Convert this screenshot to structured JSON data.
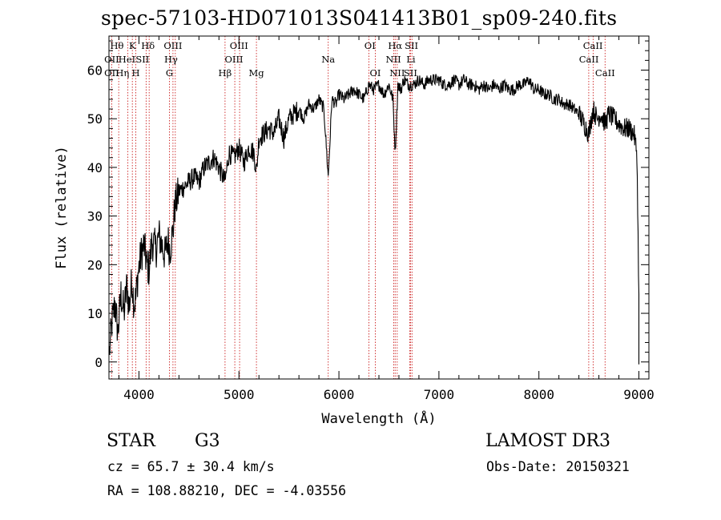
{
  "chart_data": {
    "type": "line",
    "title": "spec-57103-HD071013S041413B01_sp09-240.fits",
    "xlabel": "Wavelength (Å)",
    "ylabel": "Flux (relative)",
    "xlim": [
      3700,
      9100
    ],
    "ylim": [
      -3.5,
      67
    ],
    "xticks": [
      4000,
      5000,
      6000,
      7000,
      8000,
      9000
    ],
    "yticks": [
      0,
      10,
      20,
      30,
      40,
      50,
      60
    ],
    "xtick_labels": [
      "4000",
      "5000",
      "6000",
      "7000",
      "8000",
      "9000"
    ],
    "ytick_labels": [
      "0",
      "10",
      "20",
      "30",
      "40",
      "50",
      "60"
    ],
    "series": [
      {
        "name": "flux",
        "x": [
          3705,
          3730,
          3760,
          3790,
          3820,
          3850,
          3880,
          3900,
          3930,
          3950,
          3968,
          3990,
          4020,
          4050,
          4080,
          4102,
          4130,
          4170,
          4200,
          4230,
          4260,
          4290,
          4310,
          4340,
          4360,
          4400,
          4450,
          4500,
          4550,
          4600,
          4650,
          4700,
          4750,
          4800,
          4861,
          4900,
          4950,
          5000,
          5050,
          5100,
          5150,
          5175,
          5200,
          5250,
          5300,
          5350,
          5400,
          5450,
          5500,
          5550,
          5600,
          5650,
          5700,
          5750,
          5800,
          5850,
          5893,
          5930,
          5970,
          6000,
          6050,
          6100,
          6150,
          6200,
          6250,
          6300,
          6350,
          6400,
          6450,
          6500,
          6540,
          6563,
          6590,
          6620,
          6650,
          6700,
          6750,
          6800,
          6850,
          6900,
          6950,
          7000,
          7050,
          7100,
          7150,
          7200,
          7250,
          7300,
          7350,
          7400,
          7450,
          7500,
          7550,
          7600,
          7650,
          7700,
          7750,
          7800,
          7850,
          7900,
          7950,
          8000,
          8050,
          8100,
          8150,
          8200,
          8250,
          8300,
          8350,
          8400,
          8450,
          8498,
          8542,
          8580,
          8620,
          8662,
          8700,
          8750,
          8800,
          8850,
          8900,
          8950,
          8980,
          9000
        ],
        "y": [
          2,
          8,
          12,
          6,
          14,
          10,
          16,
          11,
          17,
          12,
          13,
          18,
          22,
          24,
          20,
          19,
          25,
          23,
          26,
          24,
          22,
          25,
          23,
          27,
          32,
          35,
          36,
          37,
          38,
          37,
          40,
          41,
          42,
          40,
          37,
          43,
          42,
          44,
          41,
          44,
          43,
          39,
          46,
          47,
          48,
          47,
          50,
          46,
          50,
          51,
          52,
          50,
          53,
          52,
          54,
          52,
          38,
          54,
          53,
          55,
          54,
          55,
          56,
          55,
          54,
          57,
          56,
          57,
          55,
          57,
          54,
          43,
          57,
          56,
          58,
          57,
          57,
          58,
          57,
          58,
          58,
          58,
          57,
          57,
          58,
          57,
          58,
          57,
          57,
          56,
          57,
          56,
          57,
          56,
          57,
          56,
          56,
          57,
          57,
          58,
          56,
          56,
          55,
          55,
          54,
          54,
          53,
          53,
          52,
          51,
          49,
          47,
          52,
          50,
          51,
          49,
          51,
          50,
          49,
          48,
          48,
          47,
          43,
          14
        ]
      }
    ],
    "spectral_lines": [
      {
        "name": "O II",
        "wavelength": 3727
      },
      {
        "name": "Hθ",
        "wavelength": 3798
      },
      {
        "name": "He I",
        "wavelength": 3889
      },
      {
        "name": "K",
        "wavelength": 3934
      },
      {
        "name": "H",
        "wavelength": 3968
      },
      {
        "name": "S II",
        "wavelength": 4072
      },
      {
        "name": "Hδ",
        "wavelength": 4102
      },
      {
        "name": "O III",
        "wavelength": 4363
      },
      {
        "name": "Hγ",
        "wavelength": 4340
      },
      {
        "name": "G",
        "wavelength": 4305
      },
      {
        "name": "Hβ",
        "wavelength": 4861
      },
      {
        "name": "O III",
        "wavelength": 4959
      },
      {
        "name": "O III",
        "wavelength": 5007
      },
      {
        "name": "Mg",
        "wavelength": 5175
      },
      {
        "name": "Na",
        "wavelength": 5893
      },
      {
        "name": "O I",
        "wavelength": 6300
      },
      {
        "name": "O I",
        "wavelength": 6364
      },
      {
        "name": "N II",
        "wavelength": 6548
      },
      {
        "name": "Hα",
        "wavelength": 6563
      },
      {
        "name": "N II",
        "wavelength": 6583
      },
      {
        "name": "Li",
        "wavelength": 6708
      },
      {
        "name": "S II",
        "wavelength": 6716
      },
      {
        "name": "S II",
        "wavelength": 6731
      },
      {
        "name": "Ca II",
        "wavelength": 8498
      },
      {
        "name": "Ca II",
        "wavelength": 8542
      },
      {
        "name": "Ca II",
        "wavelength": 8662
      }
    ],
    "line_labels": [
      {
        "text": "Hθ",
        "wavelength": 3780,
        "row": 1
      },
      {
        "text": "K",
        "wavelength": 3935,
        "row": 1
      },
      {
        "text": "Hδ",
        "wavelength": 4090,
        "row": 1
      },
      {
        "text": "OIII",
        "wavelength": 4340,
        "row": 1
      },
      {
        "text": "OIII",
        "wavelength": 5000,
        "row": 1
      },
      {
        "text": "OI",
        "wavelength": 6310,
        "row": 1
      },
      {
        "text": "Hα",
        "wavelength": 6563,
        "row": 1
      },
      {
        "text": "SII",
        "wavelength": 6725,
        "row": 1
      },
      {
        "text": "CaII",
        "wavelength": 8540,
        "row": 1
      },
      {
        "text": "OII",
        "wavelength": 3727,
        "row": 2
      },
      {
        "text": "HeI",
        "wavelength": 3880,
        "row": 2
      },
      {
        "text": "SII",
        "wavelength": 4035,
        "row": 2
      },
      {
        "text": "Hγ",
        "wavelength": 4320,
        "row": 2
      },
      {
        "text": "OIII",
        "wavelength": 4950,
        "row": 2
      },
      {
        "text": "Na",
        "wavelength": 5893,
        "row": 2
      },
      {
        "text": "NII",
        "wavelength": 6545,
        "row": 2
      },
      {
        "text": "Li",
        "wavelength": 6720,
        "row": 2
      },
      {
        "text": "CaII",
        "wavelength": 8500,
        "row": 2
      },
      {
        "text": "OII",
        "wavelength": 3727,
        "row": 3
      },
      {
        "text": "Hη",
        "wavelength": 3835,
        "row": 3
      },
      {
        "text": "H",
        "wavelength": 3968,
        "row": 3
      },
      {
        "text": "G",
        "wavelength": 4305,
        "row": 3
      },
      {
        "text": "Hβ",
        "wavelength": 4861,
        "row": 3
      },
      {
        "text": "Mg",
        "wavelength": 5175,
        "row": 3
      },
      {
        "text": "OI",
        "wavelength": 6364,
        "row": 3
      },
      {
        "text": "NII",
        "wavelength": 6583,
        "row": 3
      },
      {
        "text": "SII",
        "wavelength": 6716,
        "row": 3
      },
      {
        "text": "CaII",
        "wavelength": 8662,
        "row": 3
      }
    ]
  },
  "info": {
    "class": "STAR",
    "subclass": "G3",
    "survey": "LAMOST DR3",
    "cz": "cz = 65.7 ± 30.4 km/s",
    "obs_date": "Obs-Date: 20150321",
    "radec": "RA = 108.88210, DEC =  -4.03556"
  }
}
